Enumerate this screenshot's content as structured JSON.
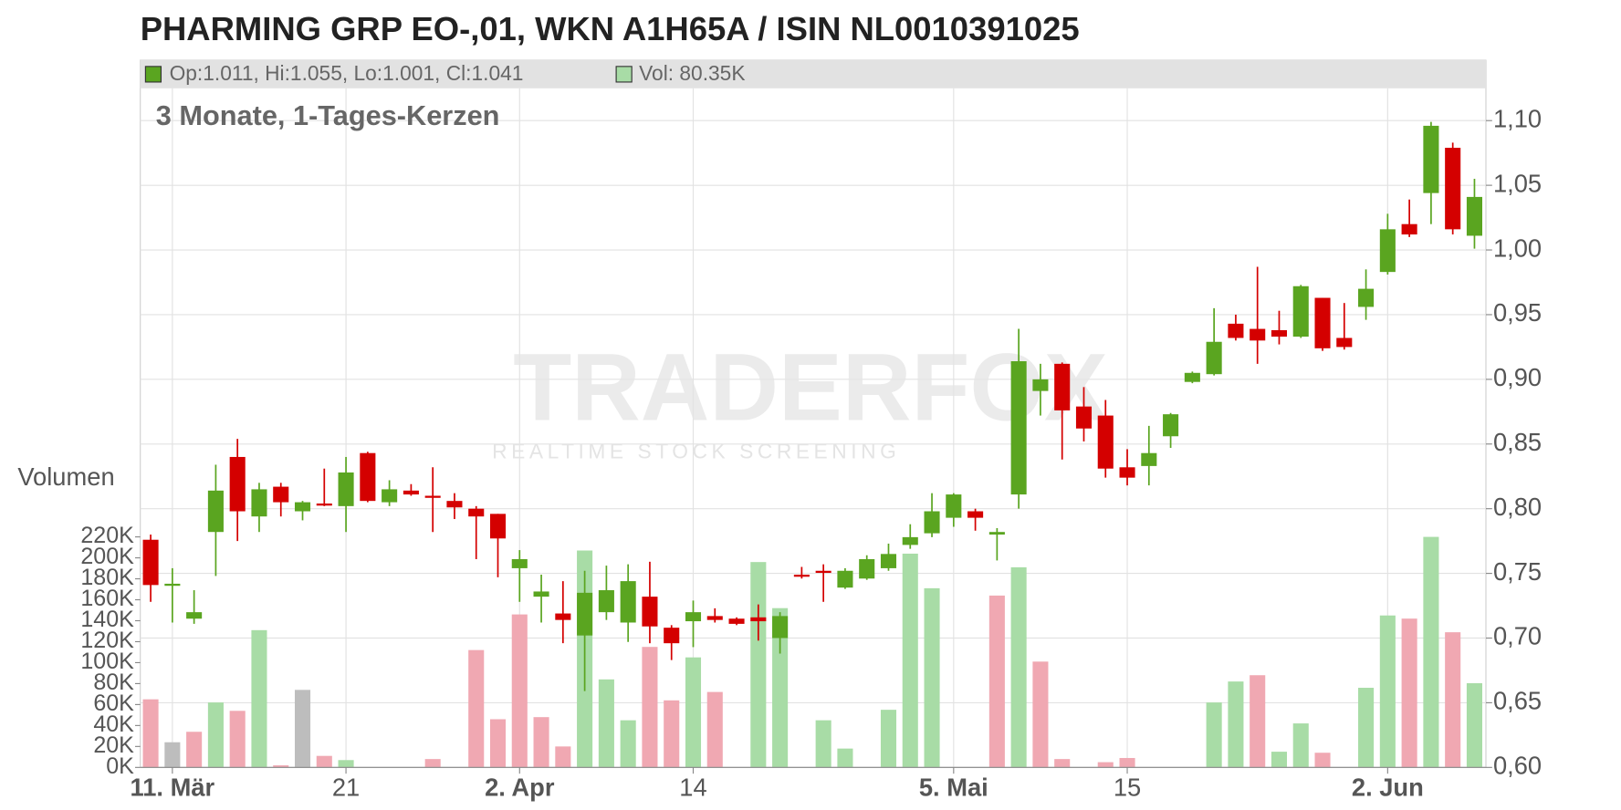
{
  "chart_data": {
    "type": "candlestick",
    "title": "PHARMING GRP EO-,01, WKN A1H65A / ISIN NL0010391025",
    "subtitle": "3 Monate, 1-Tages-Kerzen",
    "ohlc_label": "Op:1.011, Hi:1.055, Lo:1.001, Cl:1.041",
    "volume_label": "Vol: 80.35K",
    "volume_axis_label": "Volumen",
    "watermark": "TRADERFOX",
    "watermark_tagline": "REALTIME STOCK SCREENING",
    "up_color": "#5aa520",
    "down_color": "#d40000",
    "grid": true,
    "categories": [
      null,
      "11. Mär",
      null,
      null,
      null,
      null,
      null,
      null,
      null,
      "21",
      null,
      null,
      null,
      null,
      null,
      null,
      null,
      "2. Apr",
      null,
      null,
      null,
      null,
      null,
      null,
      null,
      "14",
      null,
      null,
      null,
      null,
      null,
      null,
      null,
      null,
      null,
      null,
      null,
      "5. Mai",
      null,
      null,
      null,
      null,
      null,
      null,
      null,
      "15",
      null,
      null,
      null,
      null,
      null,
      null,
      null,
      null,
      null,
      null,
      null,
      "2. Jun",
      null,
      null,
      null,
      null
    ],
    "open": [
      0.776,
      0.742,
      0.715,
      0.782,
      0.84,
      0.794,
      0.817,
      0.798,
      0.804,
      0.802,
      0.843,
      0.805,
      0.814,
      0.81,
      0.806,
      0.8,
      0.796,
      0.754,
      0.732,
      0.719,
      0.702,
      0.72,
      0.712,
      0.732,
      0.708,
      0.713,
      0.717,
      0.715,
      0.716,
      0.7,
      0.749,
      0.752,
      0.739,
      0.746,
      0.754,
      0.772,
      0.781,
      0.793,
      0.798,
      0.78,
      0.811,
      0.891,
      0.912,
      0.879,
      0.872,
      0.832,
      0.833,
      0.856,
      0.898,
      0.904,
      0.943,
      0.939,
      0.938,
      0.933,
      0.963,
      0.932,
      0.956,
      0.983,
      1.02,
      1.044,
      1.079,
      1.011
    ],
    "high": [
      0.78,
      0.754,
      0.737,
      0.834,
      0.854,
      0.82,
      0.82,
      0.806,
      0.831,
      0.84,
      0.844,
      0.822,
      0.819,
      0.832,
      0.812,
      0.802,
      0.796,
      0.768,
      0.749,
      0.744,
      0.752,
      0.756,
      0.757,
      0.759,
      0.71,
      0.729,
      0.723,
      0.716,
      0.726,
      0.72,
      0.755,
      0.757,
      0.754,
      0.764,
      0.773,
      0.788,
      0.812,
      0.812,
      0.8,
      0.785,
      0.939,
      0.912,
      0.913,
      0.894,
      0.884,
      0.846,
      0.864,
      0.874,
      0.906,
      0.955,
      0.95,
      0.987,
      0.953,
      0.973,
      0.963,
      0.959,
      0.985,
      1.028,
      1.039,
      1.099,
      1.083,
      1.055
    ],
    "low": [
      0.728,
      0.712,
      0.711,
      0.748,
      0.775,
      0.782,
      0.794,
      0.791,
      0.802,
      0.782,
      0.805,
      0.802,
      0.81,
      0.782,
      0.792,
      0.761,
      0.747,
      0.728,
      0.712,
      0.696,
      0.659,
      0.714,
      0.697,
      0.696,
      0.683,
      0.693,
      0.712,
      0.71,
      0.698,
      0.688,
      0.746,
      0.728,
      0.738,
      0.745,
      0.752,
      0.769,
      0.778,
      0.786,
      0.783,
      0.76,
      0.8,
      0.872,
      0.838,
      0.852,
      0.824,
      0.818,
      0.818,
      0.847,
      0.897,
      0.903,
      0.93,
      0.912,
      0.927,
      0.932,
      0.922,
      0.923,
      0.946,
      0.981,
      1.01,
      1.02,
      1.012,
      1.001
    ],
    "close": [
      0.741,
      0.742,
      0.72,
      0.814,
      0.798,
      0.815,
      0.805,
      0.805,
      0.803,
      0.828,
      0.806,
      0.815,
      0.811,
      0.809,
      0.801,
      0.794,
      0.777,
      0.761,
      0.736,
      0.714,
      0.735,
      0.737,
      0.744,
      0.709,
      0.696,
      0.72,
      0.714,
      0.711,
      0.713,
      0.717,
      0.748,
      0.751,
      0.752,
      0.761,
      0.765,
      0.778,
      0.798,
      0.811,
      0.793,
      0.782,
      0.914,
      0.9,
      0.876,
      0.862,
      0.831,
      0.824,
      0.843,
      0.873,
      0.905,
      0.929,
      0.932,
      0.93,
      0.933,
      0.972,
      0.924,
      0.925,
      0.97,
      1.016,
      1.012,
      1.096,
      1.016,
      1.041
    ],
    "volume": [
      65000,
      24000,
      34000,
      62000,
      54000,
      131000,
      2000,
      74000,
      11000,
      7000,
      0,
      0,
      0,
      8000,
      0,
      112000,
      46000,
      146000,
      48000,
      20000,
      207000,
      84000,
      45000,
      115000,
      64000,
      105000,
      72000,
      0,
      196000,
      152000,
      0,
      45000,
      18000,
      0,
      55000,
      204000,
      171000,
      0,
      0,
      164000,
      191000,
      101000,
      8000,
      0,
      5000,
      9000,
      0,
      0,
      0,
      62000,
      82000,
      88000,
      15000,
      42000,
      14000,
      0,
      76000,
      145000,
      142000,
      220000,
      129000,
      80350
    ],
    "volume_colors": [
      "#f0a8b2",
      "#bdbdbd",
      "#f0a8b2",
      "#a8dca6",
      "#f0a8b2",
      "#a8dca6",
      "#f0a8b2",
      "#bdbdbd",
      "#f0a8b2",
      "#a8dca6",
      "#f0a8b2",
      "#f0a8b2",
      "#f0a8b2",
      "#f0a8b2",
      "#f0a8b2",
      "#f0a8b2",
      "#f0a8b2",
      "#f0a8b2",
      "#f0a8b2",
      "#f0a8b2",
      "#a8dca6",
      "#a8dca6",
      "#a8dca6",
      "#f0a8b2",
      "#f0a8b2",
      "#a8dca6",
      "#f0a8b2",
      "#f0a8b2",
      "#a8dca6",
      "#a8dca6",
      "#f0a8b2",
      "#a8dca6",
      "#a8dca6",
      "#a8dca6",
      "#a8dca6",
      "#a8dca6",
      "#a8dca6",
      "#a8dca6",
      "#f0a8b2",
      "#f0a8b2",
      "#a8dca6",
      "#f0a8b2",
      "#f0a8b2",
      "#f0a8b2",
      "#f0a8b2",
      "#f0a8b2",
      "#a8dca6",
      "#a8dca6",
      "#a8dca6",
      "#a8dca6",
      "#a8dca6",
      "#f0a8b2",
      "#a8dca6",
      "#a8dca6",
      "#f0a8b2",
      "#f0a8b2",
      "#a8dca6",
      "#a8dca6",
      "#f0a8b2",
      "#a8dca6",
      "#f0a8b2",
      "#a8dca6"
    ],
    "ylim": [
      0.6,
      1.125
    ],
    "yticks": [
      {
        "value": 0.6,
        "label": "0,60"
      },
      {
        "value": 0.65,
        "label": "0,65"
      },
      {
        "value": 0.7,
        "label": "0,70"
      },
      {
        "value": 0.75,
        "label": "0,75"
      },
      {
        "value": 0.8,
        "label": "0,80"
      },
      {
        "value": 0.85,
        "label": "0,85"
      },
      {
        "value": 0.9,
        "label": "0,90"
      },
      {
        "value": 0.95,
        "label": "0,95"
      },
      {
        "value": 1.0,
        "label": "1,00"
      },
      {
        "value": 1.05,
        "label": "1,05"
      },
      {
        "value": 1.1,
        "label": "1,10"
      }
    ],
    "y2lim": [
      0,
      220000
    ],
    "y2ticks": [
      {
        "value": 0,
        "label": "0K"
      },
      {
        "value": 20000,
        "label": "20K"
      },
      {
        "value": 40000,
        "label": "40K"
      },
      {
        "value": 60000,
        "label": "60K"
      },
      {
        "value": 80000,
        "label": "80K"
      },
      {
        "value": 100000,
        "label": "100K"
      },
      {
        "value": 120000,
        "label": "120K"
      },
      {
        "value": 140000,
        "label": "140K"
      },
      {
        "value": 160000,
        "label": "160K"
      },
      {
        "value": 180000,
        "label": "180K"
      },
      {
        "value": 200000,
        "label": "200K"
      },
      {
        "value": 220000,
        "label": "220K"
      }
    ]
  }
}
